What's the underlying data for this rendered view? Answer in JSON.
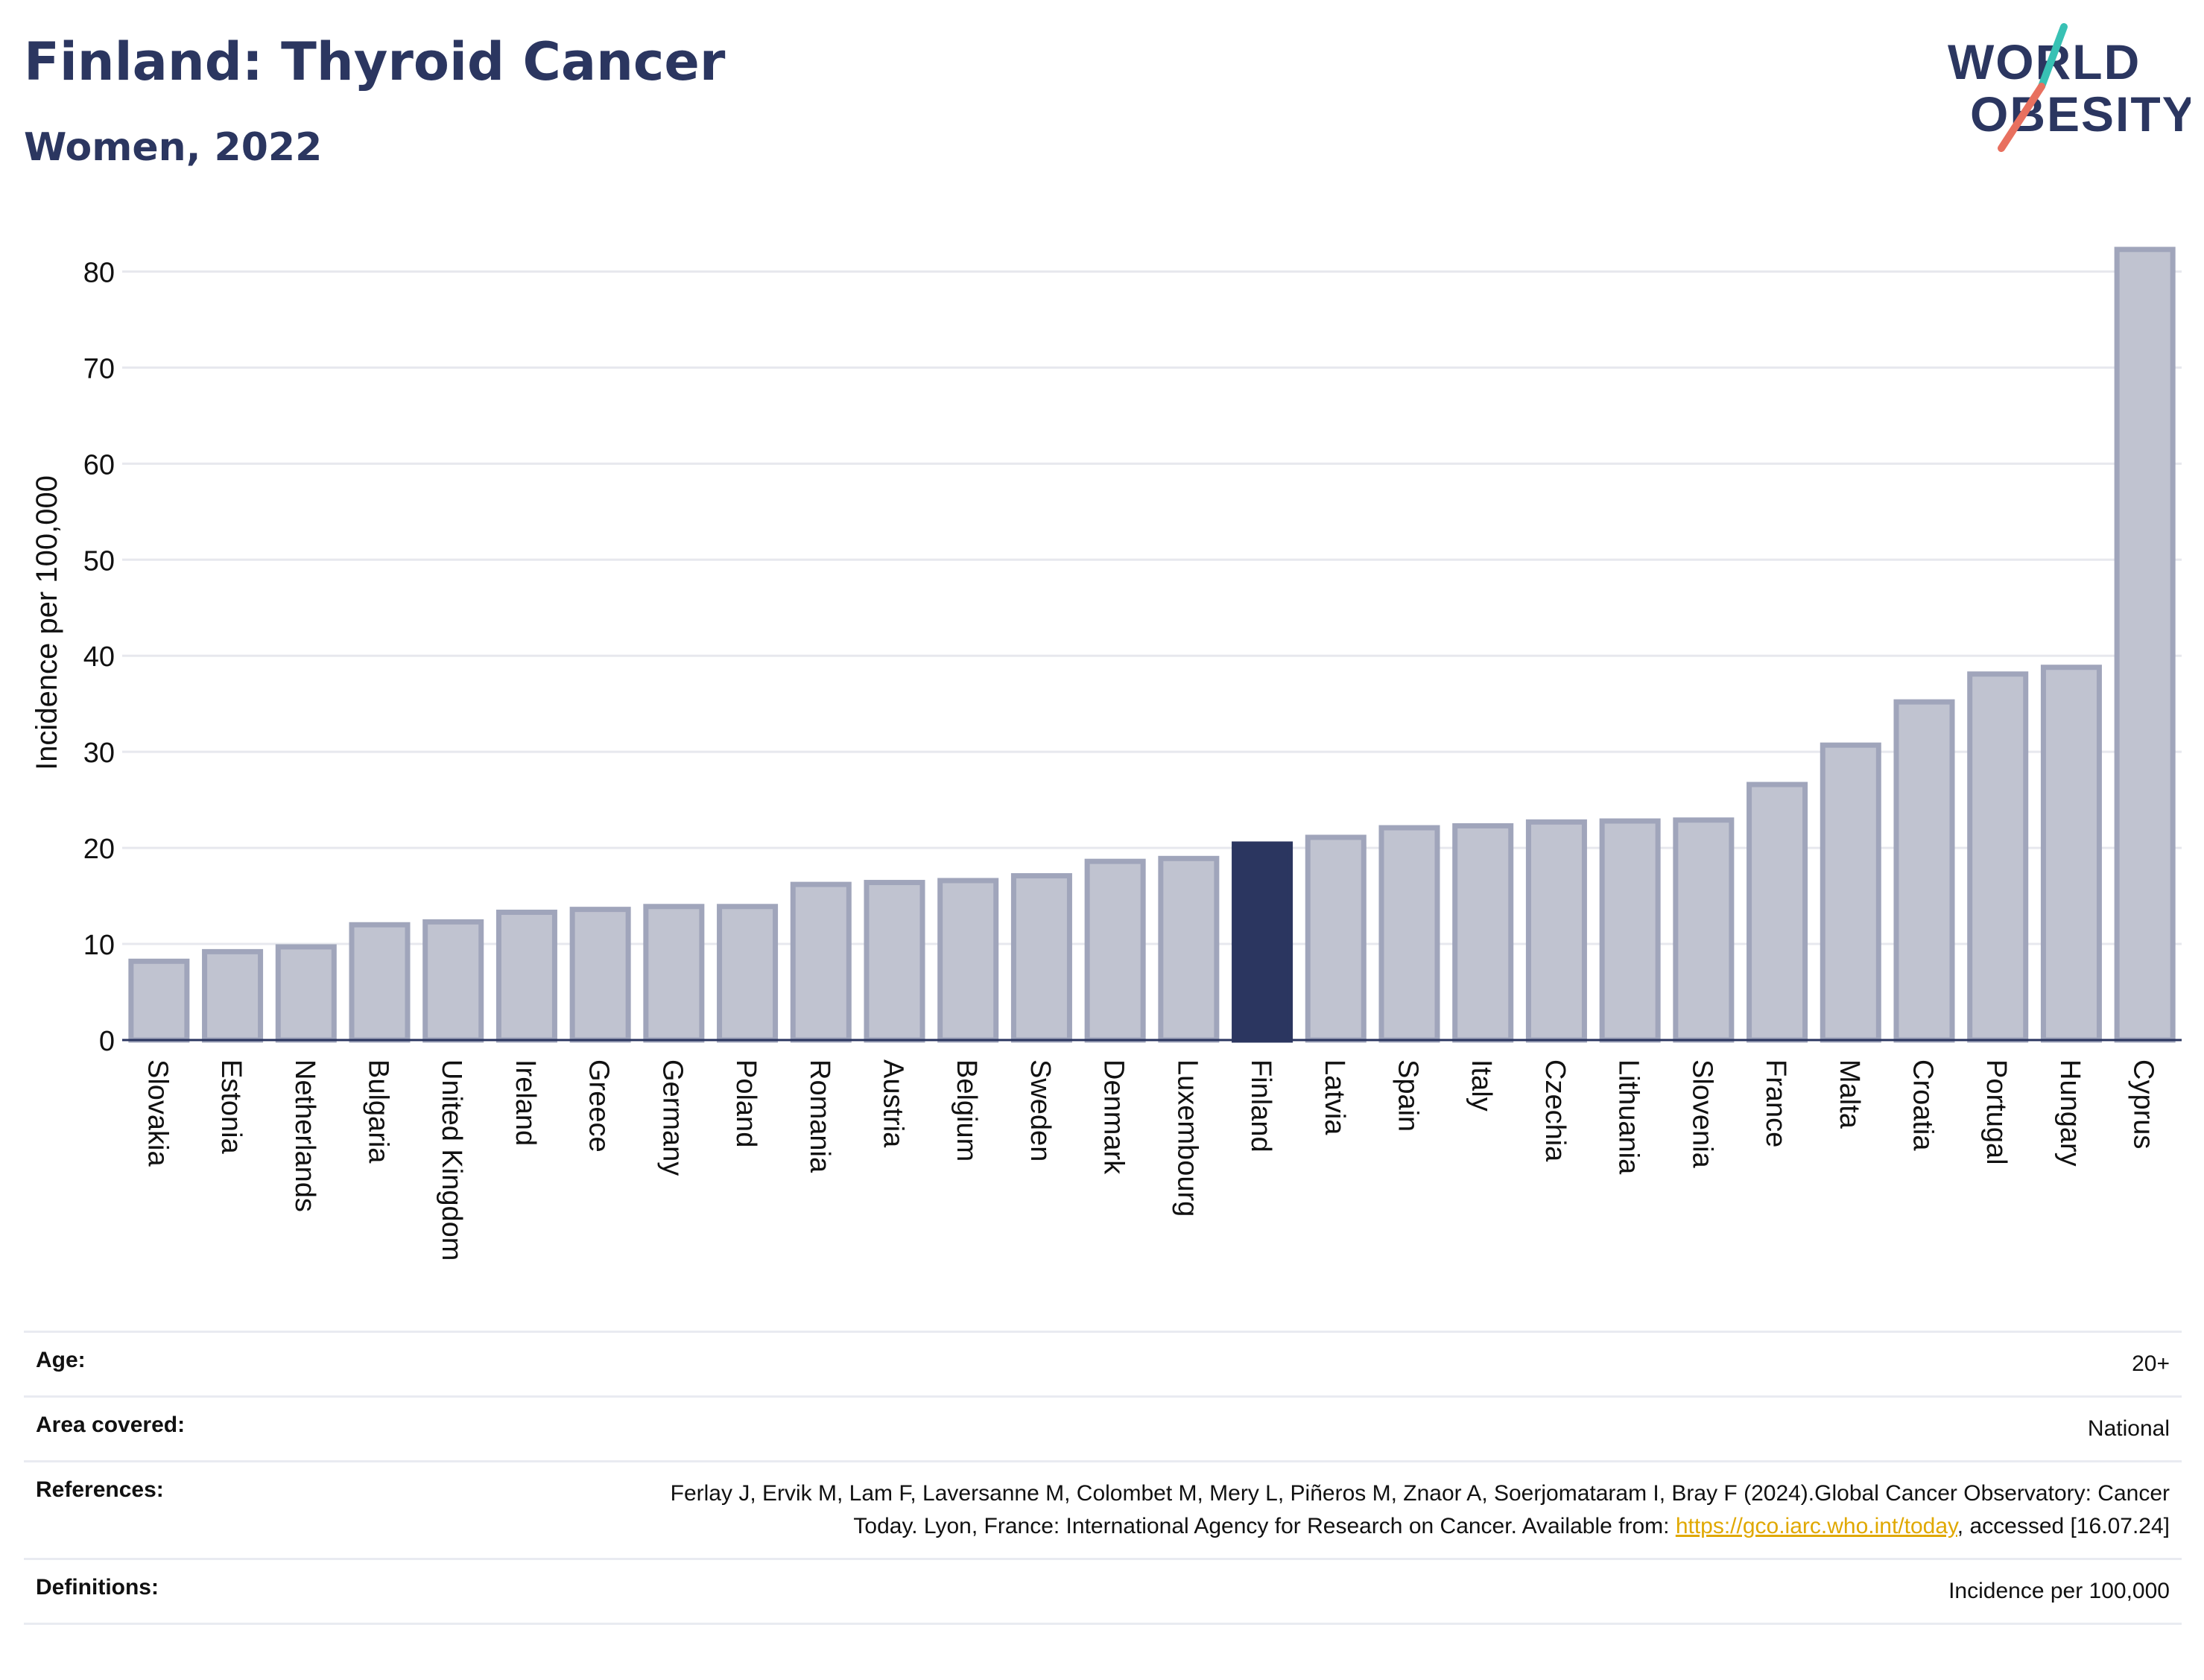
{
  "header": {
    "title": "Finland: Thyroid Cancer",
    "subtitle": "Women, 2022",
    "logo_line1": "WORLD",
    "logo_line2": "OBESITY"
  },
  "colors": {
    "bar": "#c0c3d0",
    "bar_border": "#a0a5bb",
    "highlight": "#2b3660",
    "grid": "#e7e8ee",
    "axis": "#2b3660",
    "logo_teal": "#38c1b4",
    "logo_coral": "#e8705f"
  },
  "chart_data": {
    "type": "bar",
    "ylabel": "Incidence per 100,000",
    "ylim": [
      0,
      85
    ],
    "yticks": [
      0,
      10,
      20,
      30,
      40,
      50,
      60,
      70,
      80
    ],
    "grid": true,
    "highlight": "Finland",
    "categories": [
      "Slovakia",
      "Estonia",
      "Netherlands",
      "Bulgaria",
      "United Kingdom",
      "Ireland",
      "Greece",
      "Germany",
      "Poland",
      "Romania",
      "Austria",
      "Belgium",
      "Sweden",
      "Denmark",
      "Luxembourg",
      "Finland",
      "Latvia",
      "Spain",
      "Italy",
      "Czechia",
      "Lithuania",
      "Slovenia",
      "France",
      "Malta",
      "Croatia",
      "Portugal",
      "Hungary",
      "Cyprus"
    ],
    "values": [
      8.2,
      9.2,
      9.7,
      12.0,
      12.3,
      13.3,
      13.6,
      13.9,
      13.9,
      16.2,
      16.4,
      16.6,
      17.1,
      18.6,
      18.9,
      20.4,
      21.1,
      22.1,
      22.3,
      22.7,
      22.8,
      22.9,
      26.6,
      30.7,
      35.2,
      38.1,
      38.8,
      82.3
    ]
  },
  "meta": {
    "age_label": "Age:",
    "age_value": "20+",
    "area_label": "Area covered:",
    "area_value": "National",
    "references_label": "References:",
    "references_text": "Ferlay J, Ervik M, Lam F, Laversanne M, Colombet M, Mery L, Piñeros M, Znaor A, Soerjomataram I, Bray F (2024).Global Cancer Observatory: Cancer Today. Lyon, France: International Agency for Research on Cancer. Available from:",
    "references_link": "https://gco.iarc.who.int/today",
    "references_tail": ", accessed [16.07.24]",
    "definitions_label": "Definitions:",
    "definitions_value": "Incidence per 100,000"
  }
}
